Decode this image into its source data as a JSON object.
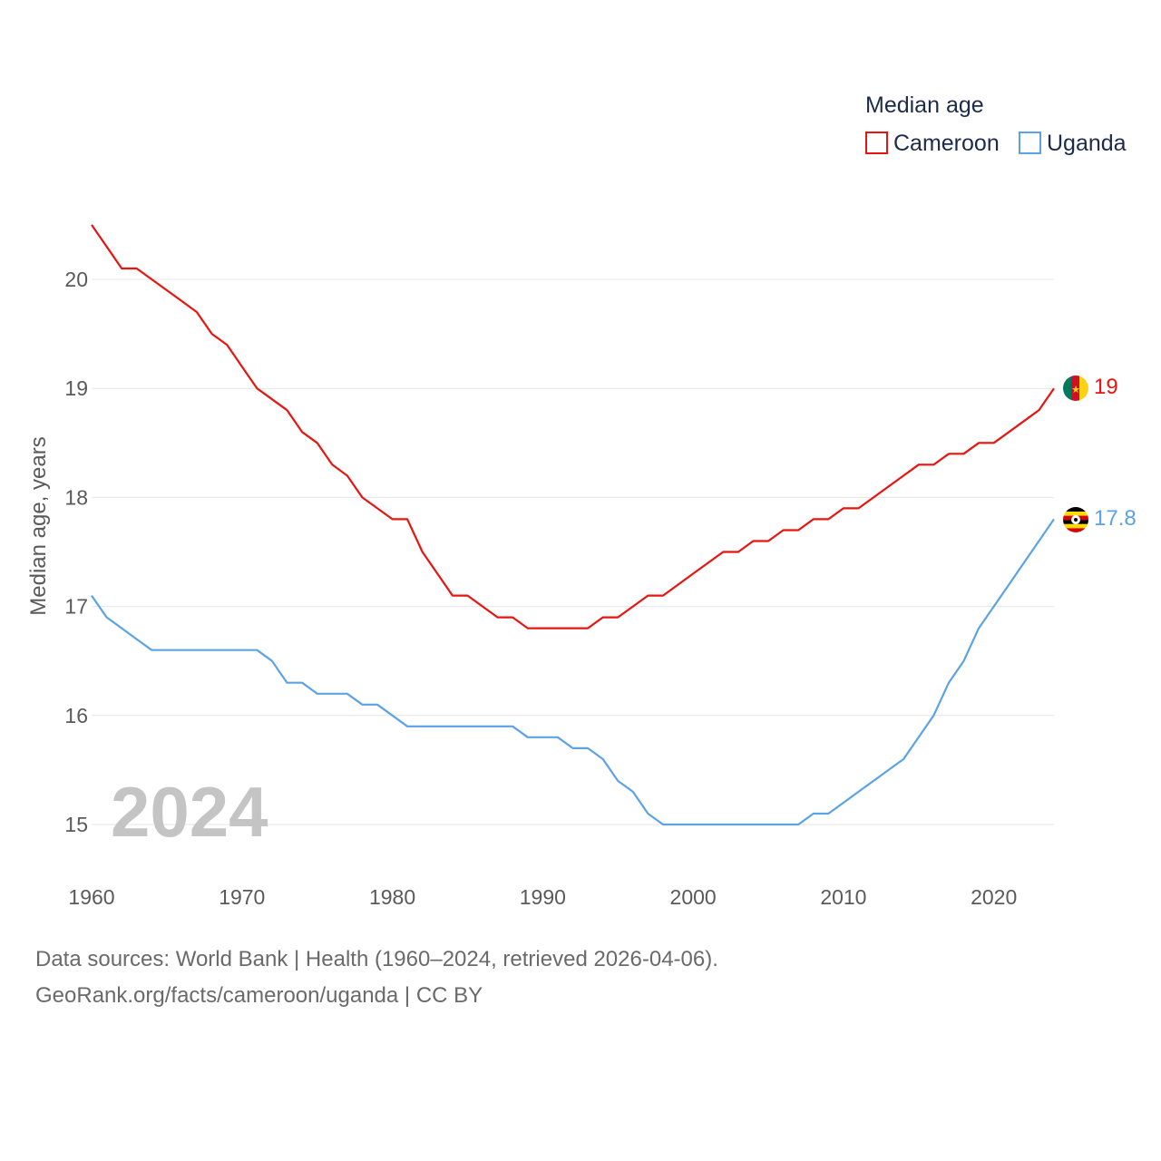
{
  "chart_data": {
    "type": "line",
    "legend_title": "Median age",
    "ylabel": "Median age, years",
    "xlabel": "",
    "year_display": "2024",
    "x": [
      1960,
      1961,
      1962,
      1963,
      1964,
      1965,
      1966,
      1967,
      1968,
      1969,
      1970,
      1971,
      1972,
      1973,
      1974,
      1975,
      1976,
      1977,
      1978,
      1979,
      1980,
      1981,
      1982,
      1983,
      1984,
      1985,
      1986,
      1987,
      1988,
      1989,
      1990,
      1991,
      1992,
      1993,
      1994,
      1995,
      1996,
      1997,
      1998,
      1999,
      2000,
      2001,
      2002,
      2003,
      2004,
      2005,
      2006,
      2007,
      2008,
      2009,
      2010,
      2011,
      2012,
      2013,
      2014,
      2015,
      2016,
      2017,
      2018,
      2019,
      2020,
      2021,
      2022,
      2023,
      2024
    ],
    "xticks": [
      1960,
      1970,
      1980,
      1990,
      2000,
      2010,
      2020
    ],
    "yticks": [
      15,
      16,
      17,
      18,
      19,
      20
    ],
    "xlim": [
      1960,
      2024
    ],
    "ylim": [
      14.6,
      20.6
    ],
    "series": [
      {
        "name": "Cameroon",
        "color": "#e8140f",
        "end_label": "19",
        "flag": "cameroon-flag",
        "values": [
          20.5,
          20.3,
          20.1,
          20.1,
          20.0,
          19.9,
          19.8,
          19.7,
          19.5,
          19.4,
          19.2,
          19.0,
          18.9,
          18.8,
          18.6,
          18.5,
          18.3,
          18.2,
          18.0,
          17.9,
          17.8,
          17.8,
          17.5,
          17.3,
          17.1,
          17.1,
          17.0,
          16.9,
          16.9,
          16.8,
          16.8,
          16.8,
          16.8,
          16.8,
          16.9,
          16.9,
          17.0,
          17.1,
          17.1,
          17.2,
          17.3,
          17.4,
          17.5,
          17.5,
          17.6,
          17.6,
          17.7,
          17.7,
          17.8,
          17.8,
          17.9,
          17.9,
          18.0,
          18.1,
          18.2,
          18.3,
          18.3,
          18.4,
          18.4,
          18.5,
          18.5,
          18.6,
          18.7,
          18.8,
          19.0
        ]
      },
      {
        "name": "Uganda",
        "color": "#5ba3e5",
        "end_label": "17.8",
        "flag": "uganda-flag",
        "values": [
          17.1,
          16.9,
          16.8,
          16.7,
          16.6,
          16.6,
          16.6,
          16.6,
          16.6,
          16.6,
          16.6,
          16.6,
          16.5,
          16.3,
          16.3,
          16.2,
          16.2,
          16.2,
          16.1,
          16.1,
          16.0,
          15.9,
          15.9,
          15.9,
          15.9,
          15.9,
          15.9,
          15.9,
          15.9,
          15.8,
          15.8,
          15.8,
          15.7,
          15.7,
          15.6,
          15.4,
          15.3,
          15.1,
          15.0,
          15.0,
          15.0,
          15.0,
          15.0,
          15.0,
          15.0,
          15.0,
          15.0,
          15.0,
          15.1,
          15.1,
          15.2,
          15.3,
          15.4,
          15.5,
          15.6,
          15.8,
          16.0,
          16.3,
          16.5,
          16.8,
          17.0,
          17.2,
          17.4,
          17.6,
          17.8
        ]
      }
    ]
  },
  "footer": {
    "sources": "Data sources: World Bank | Health (1960–2024, retrieved 2026-04-06).",
    "attribution": "GeoRank.org/facts/cameroon/uganda | CC BY"
  }
}
